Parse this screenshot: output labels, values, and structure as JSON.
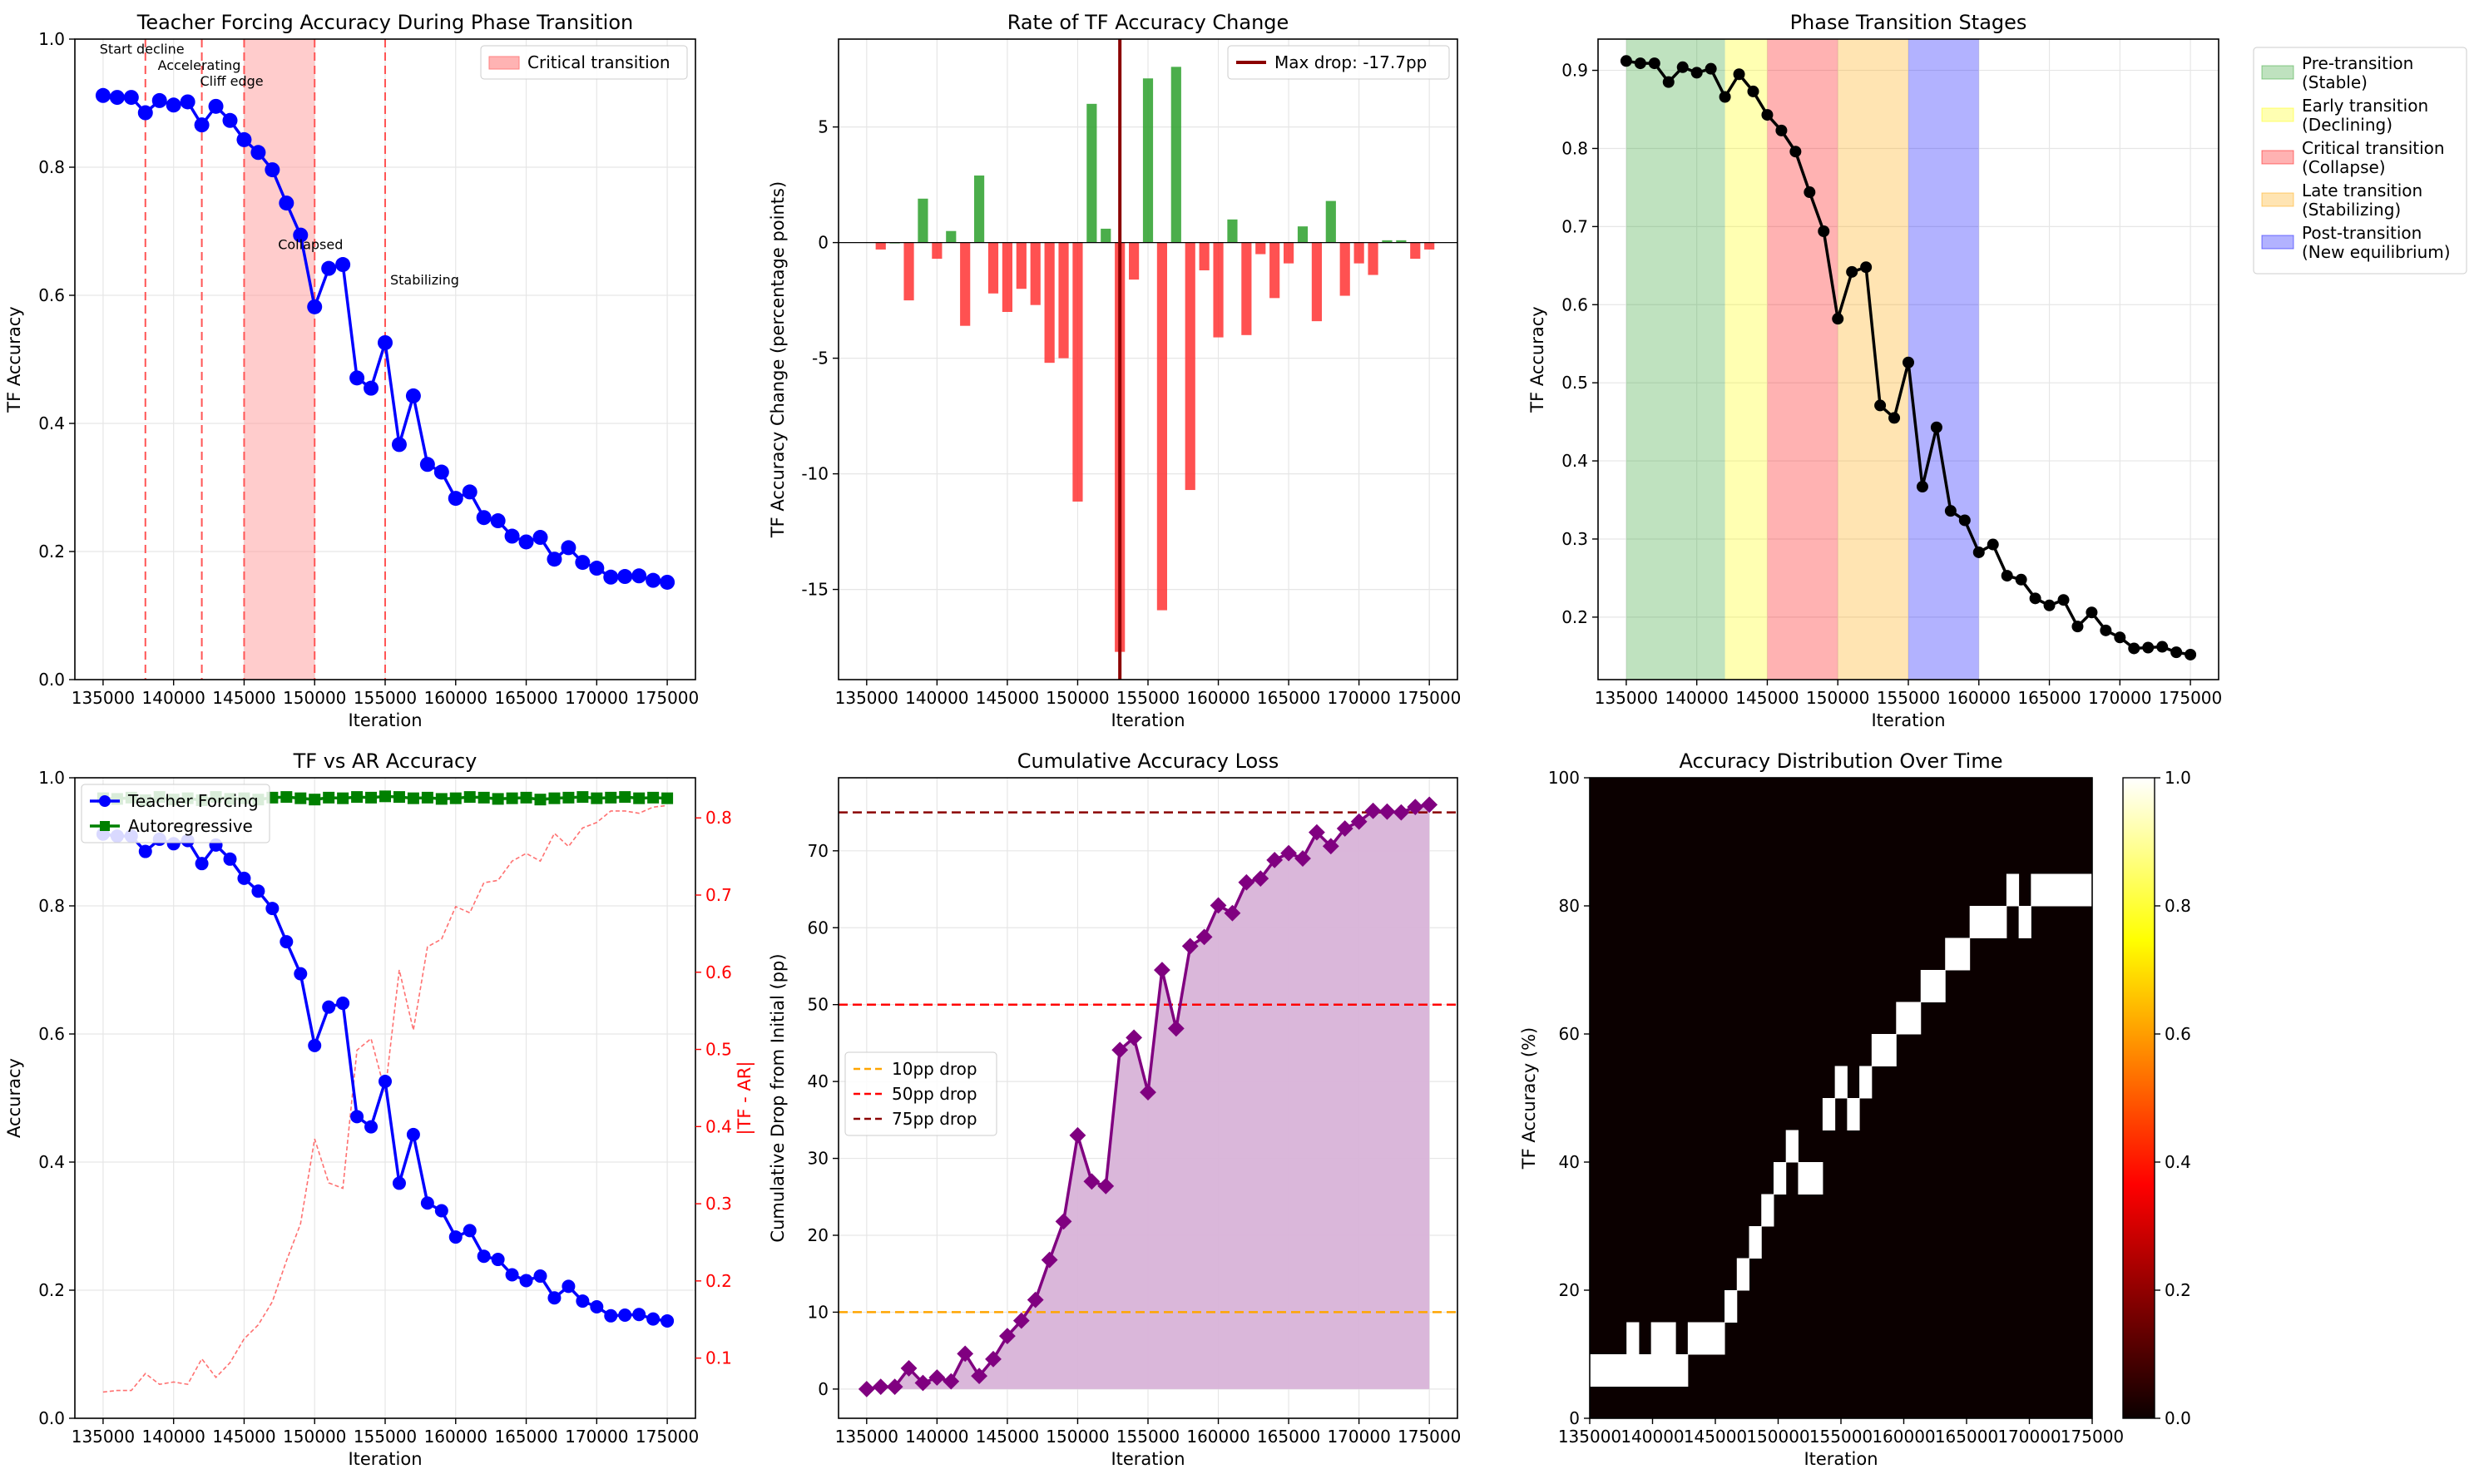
{
  "chart_data": [
    {
      "id": "p1",
      "type": "line",
      "title": "Teacher Forcing Accuracy During Phase Transition",
      "xlabel": "Iteration",
      "ylabel": "TF Accuracy",
      "xlim": [
        133000,
        177000
      ],
      "ylim": [
        0,
        1.0
      ],
      "xticks": [
        135000,
        140000,
        145000,
        150000,
        155000,
        160000,
        165000,
        170000,
        175000
      ],
      "yticks": [
        0.0,
        0.2,
        0.4,
        0.6,
        0.8,
        1.0
      ],
      "grid": true,
      "legend": {
        "location": "top-right",
        "entries": [
          {
            "label": "Critical transition",
            "color": "#ffb3b3"
          }
        ]
      },
      "shaded_span": [
        145000,
        150000
      ],
      "vlines": [
        138000,
        142000,
        145000,
        150000,
        155000
      ],
      "annotations": [
        {
          "text": "Start decline",
          "x": 138000,
          "y": 0.985
        },
        {
          "text": "Accelerating",
          "x": 142000,
          "y": 0.96
        },
        {
          "text": "Cliff edge",
          "x": 145000,
          "y": 0.935
        },
        {
          "text": "Collapsed",
          "x": 150000,
          "y": 0.68
        },
        {
          "text": "Stabilizing",
          "x": 155000,
          "y": 0.625
        }
      ],
      "series": [
        {
          "color": "#0000ff",
          "marker": "circle",
          "x": [
            135000,
            136000,
            137000,
            138000,
            139000,
            140000,
            141000,
            142000,
            143000,
            144000,
            145000,
            146000,
            147000,
            148000,
            149000,
            150000,
            151000,
            152000,
            153000,
            154000,
            155000,
            156000,
            157000,
            158000,
            159000,
            160000,
            161000,
            162000,
            163000,
            164000,
            165000,
            166000,
            167000,
            168000,
            169000,
            170000,
            171000,
            172000,
            173000,
            174000,
            175000
          ],
          "values": [
            0.912,
            0.909,
            0.909,
            0.885,
            0.904,
            0.897,
            0.902,
            0.866,
            0.895,
            0.873,
            0.843,
            0.823,
            0.796,
            0.744,
            0.694,
            0.582,
            0.642,
            0.648,
            0.471,
            0.455,
            0.526,
            0.367,
            0.443,
            0.336,
            0.324,
            0.283,
            0.293,
            0.253,
            0.248,
            0.224,
            0.215,
            0.222,
            0.188,
            0.206,
            0.183,
            0.174,
            0.16,
            0.161,
            0.162,
            0.155,
            0.152
          ]
        }
      ]
    },
    {
      "id": "p2",
      "type": "bar",
      "title": "Rate of TF Accuracy Change",
      "xlabel": "Iteration",
      "ylabel": "TF Accuracy Change (percentage points)",
      "xlim": [
        133000,
        177000
      ],
      "ylim": [
        -18.9,
        8.8
      ],
      "xticks": [
        135000,
        140000,
        145000,
        150000,
        155000,
        160000,
        165000,
        170000,
        175000
      ],
      "yticks": [
        -15,
        -10,
        -5,
        0,
        5
      ],
      "grid": true,
      "legend": {
        "location": "top-right",
        "entries": [
          {
            "label": "Max drop: -17.7pp",
            "color": "#8b0000"
          }
        ]
      },
      "vline": 153000,
      "positive_color": "#2ca02c",
      "negative_color": "#ff3333",
      "x": [
        136000,
        137000,
        138000,
        139000,
        140000,
        141000,
        142000,
        143000,
        144000,
        145000,
        146000,
        147000,
        148000,
        149000,
        150000,
        151000,
        152000,
        153000,
        154000,
        155000,
        156000,
        157000,
        158000,
        159000,
        160000,
        161000,
        162000,
        163000,
        164000,
        165000,
        166000,
        167000,
        168000,
        169000,
        170000,
        171000,
        172000,
        173000,
        174000,
        175000
      ],
      "values": [
        -0.3,
        0.0,
        -2.5,
        1.9,
        -0.7,
        0.5,
        -3.6,
        2.9,
        -2.2,
        -3.0,
        -2.0,
        -2.7,
        -5.2,
        -5.0,
        -11.2,
        6.0,
        0.6,
        -17.7,
        -1.6,
        7.1,
        -15.9,
        7.6,
        -10.7,
        -1.2,
        -4.1,
        1.0,
        -4.0,
        -0.5,
        -2.4,
        -0.9,
        0.7,
        -3.4,
        1.8,
        -2.3,
        -0.9,
        -1.4,
        0.1,
        0.1,
        -0.7,
        -0.3
      ]
    },
    {
      "id": "p3",
      "type": "line",
      "title": "Phase Transition Stages",
      "xlabel": "Iteration",
      "ylabel": "TF Accuracy",
      "xlim": [
        133000,
        177000
      ],
      "ylim": [
        0.12,
        0.94
      ],
      "xticks": [
        135000,
        140000,
        145000,
        150000,
        155000,
        160000,
        165000,
        170000,
        175000
      ],
      "yticks": [
        0.2,
        0.3,
        0.4,
        0.5,
        0.6,
        0.7,
        0.8,
        0.9
      ],
      "grid": true,
      "legend": {
        "location": "outside-right",
        "entries": [
          {
            "label": "Pre-transition",
            "label2": "(Stable)",
            "color": "#2ca02c"
          },
          {
            "label": "Early transition",
            "label2": "(Declining)",
            "color": "#ffff00"
          },
          {
            "label": "Critical transition",
            "label2": "(Collapse)",
            "color": "#ff0000"
          },
          {
            "label": "Late transition",
            "label2": "(Stabilizing)",
            "color": "#ffa500"
          },
          {
            "label": "Post-transition",
            "label2": "(New equilibrium)",
            "color": "#0000ff"
          }
        ]
      },
      "stages": [
        [
          135000,
          142000
        ],
        [
          142000,
          145000
        ],
        [
          145000,
          150000
        ],
        [
          150000,
          155000
        ],
        [
          155000,
          160000
        ]
      ],
      "series_ref": "p1",
      "series_color": "#000000"
    },
    {
      "id": "p4",
      "type": "line",
      "title": "TF vs AR Accuracy",
      "xlabel": "Iteration",
      "ylabel": "Accuracy",
      "y2label": "|TF - AR|",
      "xlim": [
        133000,
        177000
      ],
      "ylim": [
        0,
        1.0
      ],
      "y2lim": [
        0.022,
        0.852
      ],
      "xticks": [
        135000,
        140000,
        145000,
        150000,
        155000,
        160000,
        165000,
        170000,
        175000
      ],
      "yticks": [
        0.0,
        0.2,
        0.4,
        0.6,
        0.8,
        1.0
      ],
      "y2ticks": [
        0.1,
        0.2,
        0.3,
        0.4,
        0.5,
        0.6,
        0.7,
        0.8
      ],
      "grid": true,
      "legend": {
        "location": "top-left",
        "entries": [
          {
            "label": "Teacher Forcing",
            "color": "#0000ff",
            "marker": "circle"
          },
          {
            "label": "Autoregressive",
            "color": "#008000",
            "marker": "square"
          }
        ]
      },
      "ar_values": [
        0.968,
        0.967,
        0.969,
        0.965,
        0.97,
        0.966,
        0.968,
        0.965,
        0.97,
        0.967,
        0.968,
        0.966,
        0.969,
        0.97,
        0.968,
        0.966,
        0.969,
        0.968,
        0.97,
        0.969,
        0.971,
        0.97,
        0.968,
        0.969,
        0.967,
        0.968,
        0.97,
        0.969,
        0.967,
        0.968,
        0.969,
        0.966,
        0.968,
        0.969,
        0.97,
        0.968,
        0.969,
        0.97,
        0.968,
        0.969,
        0.968
      ],
      "diff_values": [
        0.056,
        0.058,
        0.058,
        0.08,
        0.066,
        0.069,
        0.066,
        0.099,
        0.075,
        0.094,
        0.125,
        0.143,
        0.173,
        0.226,
        0.274,
        0.384,
        0.327,
        0.32,
        0.499,
        0.514,
        0.445,
        0.603,
        0.525,
        0.633,
        0.643,
        0.685,
        0.677,
        0.716,
        0.719,
        0.744,
        0.754,
        0.744,
        0.78,
        0.763,
        0.787,
        0.794,
        0.809,
        0.809,
        0.806,
        0.814,
        0.816
      ]
    },
    {
      "id": "p5",
      "type": "area",
      "title": "Cumulative Accuracy Loss",
      "xlabel": "Iteration",
      "ylabel": "Cumulative Drop from Initial (pp)",
      "xlim": [
        133000,
        177000
      ],
      "ylim": [
        -3.8,
        79.5
      ],
      "xticks": [
        135000,
        140000,
        145000,
        150000,
        155000,
        160000,
        165000,
        170000,
        175000
      ],
      "yticks": [
        0,
        10,
        20,
        30,
        40,
        50,
        60,
        70
      ],
      "grid": true,
      "legend": {
        "location": "center-left",
        "entries": [
          {
            "label": "10pp drop",
            "color": "#ffa500"
          },
          {
            "label": "50pp drop",
            "color": "#ff0000"
          },
          {
            "label": "75pp drop",
            "color": "#8b0000"
          }
        ]
      },
      "hlines": [
        10,
        50,
        75
      ],
      "series_color": "#800080",
      "fill_color": "#d8b3d8",
      "values": [
        0.0,
        0.3,
        0.3,
        2.7,
        0.8,
        1.5,
        1.0,
        4.6,
        1.7,
        3.9,
        6.9,
        8.9,
        11.6,
        16.8,
        21.8,
        33.0,
        27.0,
        26.4,
        44.1,
        45.7,
        38.6,
        54.5,
        46.9,
        57.6,
        58.8,
        62.9,
        61.9,
        65.9,
        66.4,
        68.8,
        69.7,
        69.0,
        72.4,
        70.6,
        72.9,
        73.8,
        75.2,
        75.1,
        75.0,
        75.7,
        76.0
      ]
    },
    {
      "id": "p6",
      "type": "heatmap",
      "title": "Accuracy Distribution Over Time",
      "xlabel": "Iteration",
      "ylabel": "TF Accuracy (%)",
      "xlim": [
        135000,
        175000
      ],
      "ylim": [
        0,
        100
      ],
      "xticks": [
        135000,
        140000,
        145000,
        150000,
        155000,
        160000,
        165000,
        170000,
        175000
      ],
      "yticks": [
        0,
        20,
        40,
        60,
        80,
        100
      ],
      "colorbar_ticks": [
        0.0,
        0.2,
        0.4,
        0.6,
        0.8,
        1.0
      ],
      "bins": 20,
      "cells": [
        [
          0,
          1
        ],
        [
          1,
          1
        ],
        [
          2,
          1
        ],
        [
          3,
          2
        ],
        [
          3,
          1
        ],
        [
          4,
          1
        ],
        [
          5,
          2
        ],
        [
          5,
          1
        ],
        [
          6,
          2
        ],
        [
          6,
          1
        ],
        [
          7,
          1
        ],
        [
          8,
          2
        ],
        [
          9,
          2
        ],
        [
          10,
          2
        ],
        [
          11,
          3
        ],
        [
          12,
          4
        ],
        [
          13,
          5
        ],
        [
          14,
          6
        ],
        [
          15,
          7
        ],
        [
          16,
          8
        ],
        [
          17,
          7
        ],
        [
          18,
          7
        ],
        [
          19,
          9
        ],
        [
          20,
          10
        ],
        [
          21,
          9
        ],
        [
          22,
          10
        ],
        [
          23,
          11
        ],
        [
          24,
          11
        ],
        [
          25,
          12
        ],
        [
          26,
          12
        ],
        [
          27,
          13
        ],
        [
          28,
          13
        ],
        [
          29,
          14
        ],
        [
          30,
          14
        ],
        [
          31,
          15
        ],
        [
          32,
          15
        ],
        [
          33,
          15
        ],
        [
          34,
          16
        ],
        [
          35,
          15
        ],
        [
          36,
          16
        ],
        [
          37,
          16
        ],
        [
          38,
          16
        ],
        [
          39,
          16
        ],
        [
          40,
          16
        ]
      ]
    }
  ]
}
